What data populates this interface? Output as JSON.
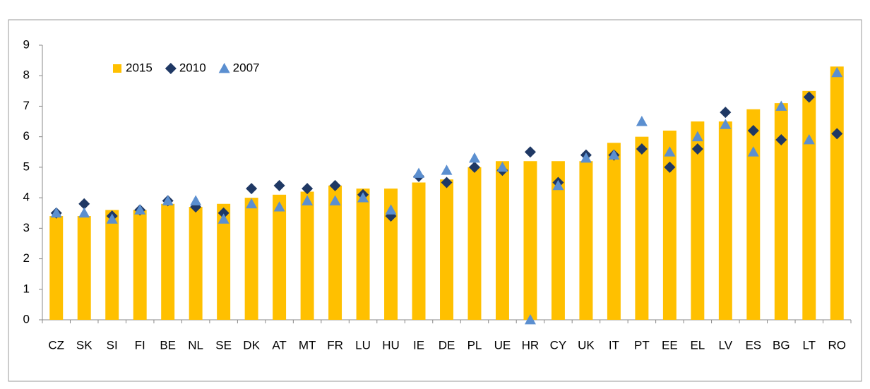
{
  "chart_data": {
    "type": "bar",
    "categories": [
      "CZ",
      "SK",
      "SI",
      "FI",
      "BE",
      "NL",
      "SE",
      "DK",
      "AT",
      "MT",
      "FR",
      "LU",
      "HU",
      "IE",
      "DE",
      "PL",
      "UE",
      "HR",
      "CY",
      "UK",
      "IT",
      "PT",
      "EE",
      "EL",
      "LV",
      "ES",
      "BG",
      "LT",
      "RO"
    ],
    "series": [
      {
        "name": "2015",
        "type": "bar",
        "color": "#ffc000",
        "values": [
          3.4,
          3.4,
          3.6,
          3.6,
          3.8,
          3.7,
          3.8,
          4.0,
          4.1,
          4.2,
          4.4,
          4.3,
          4.3,
          4.5,
          4.6,
          5.0,
          5.2,
          5.2,
          5.2,
          5.2,
          5.8,
          6.0,
          6.2,
          6.5,
          6.5,
          6.9,
          7.1,
          7.5,
          8.3
        ]
      },
      {
        "name": "2010",
        "type": "scatter",
        "marker": "diamond",
        "color": "#1f3864",
        "values": [
          3.5,
          3.8,
          3.4,
          3.6,
          3.9,
          3.7,
          3.5,
          4.3,
          4.4,
          4.3,
          4.4,
          4.1,
          3.4,
          4.7,
          4.5,
          5.0,
          4.9,
          5.5,
          4.5,
          5.4,
          5.4,
          5.6,
          5.0,
          5.6,
          6.8,
          6.2,
          5.9,
          7.3,
          6.1
        ]
      },
      {
        "name": "2007",
        "type": "scatter",
        "marker": "triangle",
        "color": "#5b8fd0",
        "values": [
          3.5,
          3.5,
          3.3,
          3.6,
          3.9,
          3.9,
          3.3,
          3.8,
          3.7,
          3.9,
          3.9,
          4.0,
          3.6,
          4.8,
          4.9,
          5.3,
          5.0,
          0,
          4.4,
          5.3,
          5.4,
          6.5,
          5.5,
          6.0,
          6.4,
          5.5,
          7.0,
          5.9,
          8.1
        ]
      }
    ],
    "ylim": [
      0,
      9
    ],
    "yticks": [
      0,
      1,
      2,
      3,
      4,
      5,
      6,
      7,
      8,
      9
    ],
    "grid": false,
    "legend": "top-left"
  }
}
